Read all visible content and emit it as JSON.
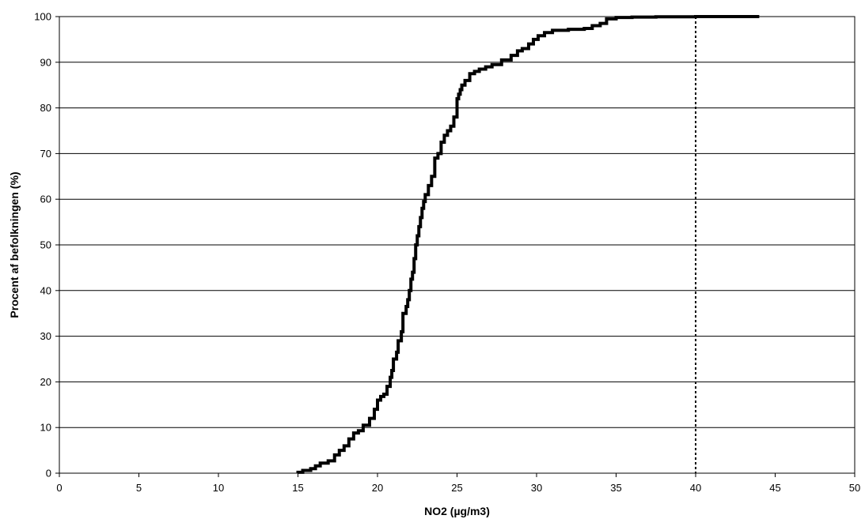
{
  "chart_data": {
    "type": "line",
    "title": "",
    "xlabel": "NO2 (µg/m3)",
    "ylabel": "Procent af befolkningen (%)",
    "xlim": [
      0,
      50
    ],
    "ylim": [
      0,
      100
    ],
    "x_ticks": [
      0,
      5,
      10,
      15,
      20,
      25,
      30,
      35,
      40,
      45,
      50
    ],
    "y_ticks": [
      0,
      10,
      20,
      30,
      40,
      50,
      60,
      70,
      80,
      90,
      100
    ],
    "grid": {
      "horizontal": true,
      "vertical": false
    },
    "reference_line": {
      "x": 40,
      "style": "dotted"
    },
    "series": [
      {
        "step": true,
        "color": "#000000",
        "x": [
          15.0,
          15.3,
          15.8,
          16.1,
          16.4,
          16.9,
          17.3,
          17.6,
          17.9,
          18.2,
          18.5,
          18.8,
          19.1,
          19.5,
          19.8,
          20.0,
          20.2,
          20.4,
          20.6,
          20.8,
          20.9,
          21.0,
          21.2,
          21.3,
          21.5,
          21.6,
          21.8,
          21.9,
          22.0,
          22.1,
          22.2,
          22.3,
          22.4,
          22.5,
          22.6,
          22.7,
          22.8,
          22.9,
          23.0,
          23.2,
          23.4,
          23.6,
          23.8,
          24.0,
          24.2,
          24.4,
          24.6,
          24.8,
          25.0,
          25.1,
          25.2,
          25.3,
          25.5,
          25.8,
          26.1,
          26.4,
          26.8,
          27.2,
          27.8,
          28.4,
          28.8,
          29.1,
          29.5,
          29.8,
          30.1,
          30.5,
          31.0,
          32.0,
          33.0,
          33.5,
          34.0,
          34.4,
          35.0,
          36.0,
          37.5,
          40.0,
          42.0,
          44.0
        ],
        "y": [
          0.2,
          0.6,
          1.0,
          1.6,
          2.2,
          2.7,
          4.0,
          5.0,
          6.0,
          7.5,
          8.8,
          9.3,
          10.5,
          12.0,
          14.0,
          16.0,
          16.8,
          17.3,
          19.0,
          21.0,
          22.5,
          25.0,
          26.5,
          29.0,
          31.0,
          35.0,
          36.5,
          38.0,
          40.0,
          42.5,
          44.0,
          47.0,
          50.0,
          52.0,
          54.0,
          56.0,
          58.0,
          59.5,
          61.0,
          63.0,
          65.0,
          69.0,
          70.0,
          72.5,
          74.0,
          75.0,
          76.0,
          78.0,
          82.0,
          83.0,
          84.0,
          85.0,
          86.0,
          87.5,
          88.0,
          88.5,
          89.0,
          89.5,
          90.5,
          91.5,
          92.5,
          93.0,
          94.0,
          95.0,
          95.8,
          96.5,
          97.0,
          97.2,
          97.4,
          98.0,
          98.5,
          99.5,
          99.8,
          99.9,
          99.95,
          100.0,
          100.0,
          100.0
        ]
      }
    ]
  }
}
